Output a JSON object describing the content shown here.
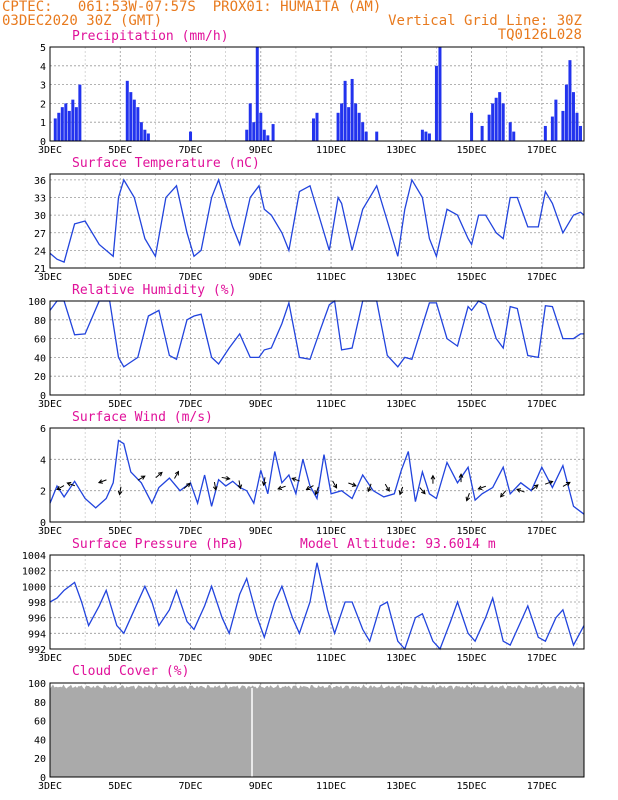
{
  "header": {
    "line1_left": "CPTEC:   061:53W-07:57S  PROX01: HUMAITA (AM)",
    "line2_left": "03DEC2020 30Z (GMT)",
    "line2_right": "Vertical Grid Line: 30Z",
    "line3_right": "TQ0126L028"
  },
  "x_labels": [
    "3DEC",
    "5DEC",
    "7DEC",
    "9DEC",
    "11DEC",
    "13DEC",
    "15DEC",
    "17DEC"
  ],
  "colors": {
    "header": "#e87a1e",
    "title": "#e0119a",
    "line": "#2244dd",
    "bar": "#2233ee",
    "cloud": "#aaaaaa",
    "arrow": "#000000"
  },
  "chart_data": [
    {
      "type": "bar",
      "title": "Precipitation (mm/h)",
      "ylim": [
        0,
        5
      ],
      "yticks": [
        0,
        1,
        2,
        3,
        4,
        5
      ],
      "xlim": [
        3,
        18.2
      ],
      "x": [
        3.15,
        3.25,
        3.35,
        3.45,
        3.55,
        3.65,
        3.75,
        3.85,
        5.2,
        5.3,
        5.4,
        5.5,
        5.6,
        5.7,
        5.8,
        7.0,
        8.6,
        8.7,
        8.8,
        8.9,
        9.0,
        9.1,
        9.2,
        9.35,
        10.5,
        10.6,
        11.2,
        11.3,
        11.4,
        11.5,
        11.6,
        11.7,
        11.8,
        11.9,
        12.0,
        12.3,
        13.6,
        13.7,
        13.8,
        14.0,
        14.1,
        15.0,
        15.3,
        15.5,
        15.6,
        15.7,
        15.8,
        15.9,
        16.1,
        16.2,
        17.1,
        17.3,
        17.4,
        17.6,
        17.7,
        17.8,
        17.9,
        18.0,
        18.1
      ],
      "values": [
        1.2,
        1.5,
        1.8,
        2.0,
        1.6,
        2.2,
        1.8,
        3.0,
        3.2,
        2.6,
        2.2,
        1.8,
        1.0,
        0.6,
        0.4,
        0.5,
        0.6,
        2.0,
        1.0,
        5.0,
        1.5,
        0.6,
        0.3,
        0.9,
        1.2,
        1.5,
        1.5,
        2.0,
        3.2,
        1.8,
        3.3,
        2.0,
        1.5,
        1.0,
        0.5,
        0.5,
        0.6,
        0.5,
        0.4,
        4.0,
        5.0,
        1.5,
        0.8,
        1.4,
        2.0,
        2.3,
        2.6,
        2.0,
        1.0,
        0.5,
        0.8,
        1.3,
        2.2,
        1.6,
        3.0,
        4.3,
        2.6,
        1.5,
        0.8
      ]
    },
    {
      "type": "line",
      "title": "Surface Temperature (nC)",
      "ylim": [
        21,
        37
      ],
      "yticks": [
        21,
        24,
        27,
        30,
        33,
        36
      ],
      "xlim": [
        3,
        18.2
      ],
      "x": [
        3,
        3.2,
        3.4,
        3.7,
        4.0,
        4.4,
        4.8,
        4.95,
        5.1,
        5.4,
        5.7,
        6.0,
        6.3,
        6.6,
        6.9,
        7.1,
        7.3,
        7.6,
        7.8,
        8.2,
        8.4,
        8.7,
        8.95,
        9.1,
        9.3,
        9.6,
        9.8,
        10.1,
        10.4,
        10.7,
        10.95,
        11.2,
        11.3,
        11.6,
        11.9,
        12.3,
        12.6,
        12.9,
        13.1,
        13.3,
        13.6,
        13.8,
        14.0,
        14.3,
        14.6,
        14.9,
        15.0,
        15.2,
        15.4,
        15.7,
        15.9,
        16.1,
        16.3,
        16.6,
        16.9,
        17.1,
        17.3,
        17.6,
        17.9,
        18.1,
        18.2
      ],
      "y": [
        23.5,
        22.5,
        22,
        28.5,
        29,
        25,
        23,
        33,
        36,
        33,
        26,
        23,
        33,
        35,
        27,
        23,
        24,
        33,
        36,
        28,
        25,
        33,
        35,
        31,
        30,
        27,
        24,
        34,
        35,
        29,
        24,
        33,
        32,
        24,
        31,
        35,
        29,
        23,
        31,
        36,
        33,
        26,
        23,
        31,
        30,
        26,
        25,
        30,
        30,
        27,
        26,
        33,
        33,
        28,
        28,
        34,
        32,
        27,
        30,
        30.5,
        30
      ]
    },
    {
      "type": "line",
      "title": "Relative Humidity (%)",
      "ylim": [
        0,
        100
      ],
      "yticks": [
        0,
        20,
        40,
        60,
        80,
        100
      ],
      "xlim": [
        3,
        18.2
      ],
      "x": [
        3,
        3.2,
        3.4,
        3.7,
        4.0,
        4.4,
        4.7,
        4.95,
        5.1,
        5.5,
        5.8,
        6.1,
        6.4,
        6.6,
        6.9,
        7.1,
        7.3,
        7.6,
        7.8,
        8.1,
        8.4,
        8.7,
        8.95,
        9.1,
        9.3,
        9.6,
        9.8,
        10.1,
        10.4,
        10.7,
        10.95,
        11.1,
        11.3,
        11.6,
        11.9,
        12.3,
        12.6,
        12.9,
        13.1,
        13.3,
        13.6,
        13.8,
        14.0,
        14.3,
        14.6,
        14.9,
        15.0,
        15.2,
        15.4,
        15.7,
        15.9,
        16.1,
        16.3,
        16.6,
        16.9,
        17.1,
        17.3,
        17.6,
        17.9,
        18.1,
        18.2
      ],
      "y": [
        90,
        100,
        100,
        64,
        65,
        100,
        100,
        40,
        30,
        40,
        84,
        90,
        42,
        38,
        80,
        84,
        86,
        40,
        33,
        50,
        65,
        40,
        40,
        48,
        50,
        76,
        98,
        40,
        38,
        70,
        96,
        100,
        48,
        50,
        100,
        100,
        42,
        30,
        40,
        38,
        74,
        98,
        98,
        60,
        52,
        94,
        90,
        100,
        96,
        60,
        50,
        94,
        92,
        42,
        40,
        95,
        94,
        60,
        60,
        65,
        65
      ]
    },
    {
      "type": "line",
      "title": "Surface Wind (m/s)",
      "ylim": [
        0,
        6
      ],
      "yticks": [
        0,
        2,
        4,
        6
      ],
      "xlim": [
        3,
        18.2
      ],
      "x": [
        3,
        3.2,
        3.4,
        3.7,
        4.0,
        4.3,
        4.6,
        4.8,
        4.95,
        5.1,
        5.3,
        5.6,
        5.9,
        6.1,
        6.4,
        6.7,
        7.0,
        7.2,
        7.4,
        7.6,
        7.8,
        8.0,
        8.2,
        8.4,
        8.6,
        8.8,
        9.0,
        9.2,
        9.4,
        9.6,
        9.8,
        10.0,
        10.2,
        10.4,
        10.6,
        10.8,
        11.0,
        11.3,
        11.6,
        11.9,
        12.2,
        12.5,
        12.8,
        13.0,
        13.2,
        13.4,
        13.6,
        13.8,
        14.0,
        14.3,
        14.6,
        14.9,
        15.1,
        15.3,
        15.6,
        15.9,
        16.1,
        16.4,
        16.7,
        17.0,
        17.3,
        17.6,
        17.9,
        18.2
      ],
      "y": [
        1.2,
        2.3,
        1.6,
        2.6,
        1.5,
        0.9,
        1.5,
        2.5,
        5.2,
        5.0,
        3.2,
        2.5,
        1.2,
        2.2,
        2.8,
        2.0,
        2.5,
        1.2,
        3.0,
        1.0,
        2.7,
        2.3,
        2.6,
        2.2,
        2.0,
        1.2,
        3.3,
        1.8,
        4.5,
        2.5,
        3.0,
        1.8,
        4.0,
        2.3,
        1.5,
        4.3,
        1.8,
        2.0,
        1.5,
        3.0,
        2.0,
        1.6,
        1.8,
        3.3,
        4.5,
        1.3,
        3.2,
        1.8,
        1.5,
        3.8,
        2.5,
        3.5,
        1.4,
        1.8,
        2.2,
        3.5,
        1.8,
        2.5,
        2.0,
        3.5,
        2.2,
        3.6,
        1.0,
        0.5
      ],
      "arrows": [
        {
          "x": 3.3,
          "y": 2.2,
          "ang": 210
        },
        {
          "x": 3.6,
          "y": 2.4,
          "ang": 160
        },
        {
          "x": 4.5,
          "y": 2.6,
          "ang": 200
        },
        {
          "x": 5.0,
          "y": 2.0,
          "ang": 260
        },
        {
          "x": 5.6,
          "y": 2.8,
          "ang": 30
        },
        {
          "x": 6.1,
          "y": 3.0,
          "ang": 40
        },
        {
          "x": 6.6,
          "y": 3.0,
          "ang": 60
        },
        {
          "x": 6.9,
          "y": 2.3,
          "ang": 40
        },
        {
          "x": 7.7,
          "y": 2.3,
          "ang": 280
        },
        {
          "x": 8.0,
          "y": 2.8,
          "ang": 350
        },
        {
          "x": 8.4,
          "y": 2.4,
          "ang": 280
        },
        {
          "x": 9.1,
          "y": 2.6,
          "ang": 260
        },
        {
          "x": 9.6,
          "y": 2.2,
          "ang": 200
        },
        {
          "x": 10.0,
          "y": 2.7,
          "ang": 160
        },
        {
          "x": 10.4,
          "y": 2.2,
          "ang": 210
        },
        {
          "x": 10.6,
          "y": 2.0,
          "ang": 250
        },
        {
          "x": 11.1,
          "y": 2.4,
          "ang": 300
        },
        {
          "x": 11.6,
          "y": 2.4,
          "ang": 340
        },
        {
          "x": 12.1,
          "y": 2.2,
          "ang": 250
        },
        {
          "x": 12.6,
          "y": 2.2,
          "ang": 300
        },
        {
          "x": 13.0,
          "y": 2.0,
          "ang": 250
        },
        {
          "x": 13.6,
          "y": 2.0,
          "ang": 310
        },
        {
          "x": 13.9,
          "y": 2.7,
          "ang": 90
        },
        {
          "x": 14.7,
          "y": 2.8,
          "ang": 90
        },
        {
          "x": 14.9,
          "y": 1.6,
          "ang": 250
        },
        {
          "x": 15.3,
          "y": 2.2,
          "ang": 200
        },
        {
          "x": 15.9,
          "y": 1.8,
          "ang": 230
        },
        {
          "x": 16.4,
          "y": 2.0,
          "ang": 160
        },
        {
          "x": 16.8,
          "y": 2.2,
          "ang": 40
        },
        {
          "x": 17.2,
          "y": 2.5,
          "ang": 20
        },
        {
          "x": 17.7,
          "y": 2.4,
          "ang": 30
        }
      ]
    },
    {
      "type": "line",
      "title": "Surface Pressure (hPa)",
      "annotation": "Model Altitude: 93.6014 m",
      "ylim": [
        992,
        1004
      ],
      "yticks": [
        992,
        994,
        996,
        998,
        1000,
        1002,
        1004
      ],
      "xlim": [
        3,
        18.2
      ],
      "x": [
        3,
        3.2,
        3.4,
        3.7,
        3.9,
        4.1,
        4.4,
        4.6,
        4.9,
        5.1,
        5.4,
        5.7,
        5.9,
        6.1,
        6.4,
        6.6,
        6.9,
        7.1,
        7.4,
        7.6,
        7.9,
        8.1,
        8.4,
        8.6,
        8.9,
        9.1,
        9.4,
        9.6,
        9.9,
        10.1,
        10.4,
        10.6,
        10.9,
        11.1,
        11.4,
        11.6,
        11.9,
        12.1,
        12.4,
        12.6,
        12.9,
        13.1,
        13.4,
        13.6,
        13.9,
        14.1,
        14.4,
        14.6,
        14.9,
        15.1,
        15.4,
        15.6,
        15.9,
        16.1,
        16.4,
        16.6,
        16.9,
        17.1,
        17.4,
        17.6,
        17.9,
        18.2
      ],
      "y": [
        998,
        998.5,
        999.5,
        1000.5,
        998,
        995,
        997.5,
        999.5,
        995,
        994,
        997,
        1000,
        998,
        995,
        997,
        999.5,
        995.5,
        994.5,
        997.5,
        1000,
        996,
        994,
        999,
        1001,
        996,
        993.5,
        998,
        1000,
        996,
        994,
        998,
        1003,
        997,
        994,
        998,
        998,
        994.5,
        993,
        997.5,
        998,
        993,
        992,
        996,
        996.5,
        993,
        992,
        995.5,
        998,
        994,
        993,
        996,
        998.5,
        993,
        992.5,
        995.5,
        997.5,
        993.5,
        993,
        996,
        997,
        992.5,
        995
      ]
    },
    {
      "type": "area",
      "title": "Cloud Cover (%)",
      "ylim": [
        0,
        100
      ],
      "yticks": [
        0,
        20,
        40,
        60,
        80,
        100
      ],
      "xlim": [
        3,
        18.2
      ],
      "mean_value": 96
    }
  ]
}
